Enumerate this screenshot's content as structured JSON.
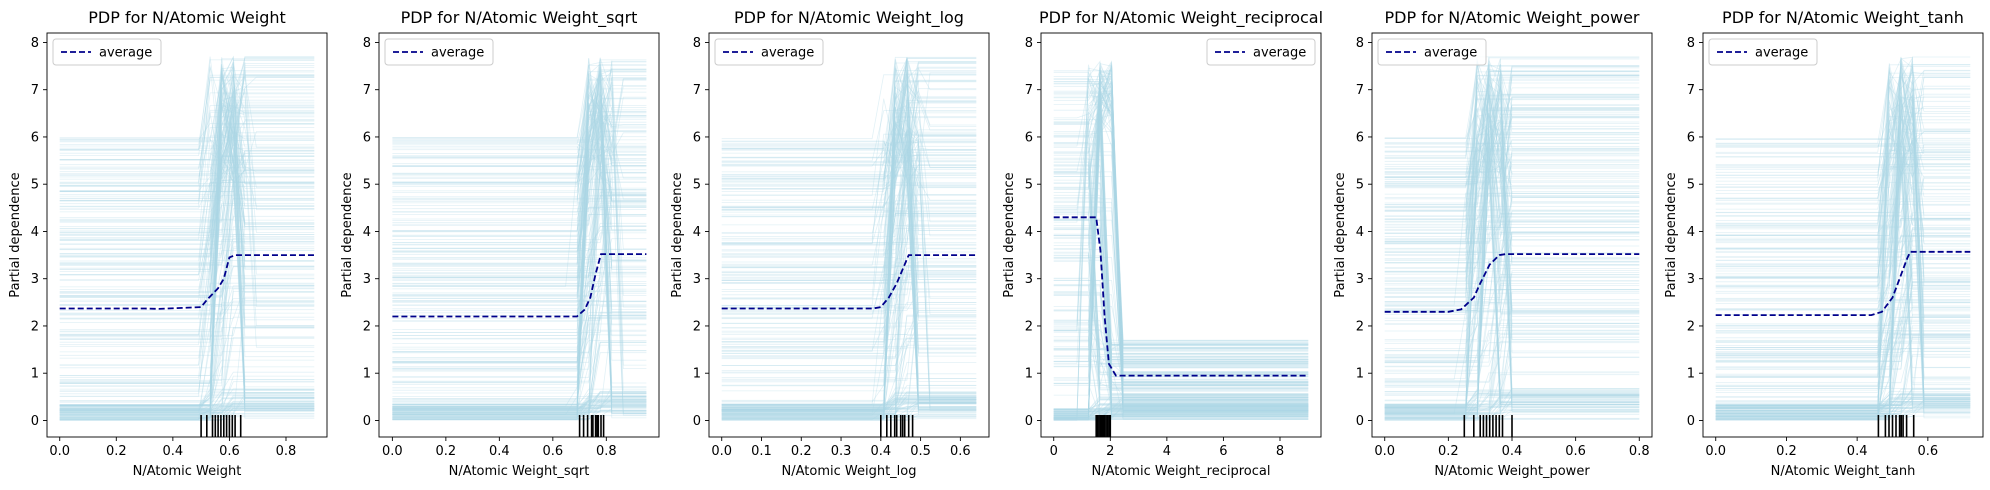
{
  "chart_data": [
    {
      "type": "line",
      "title": "PDP for N/Atomic Weight",
      "xlabel": "N/Atomic Weight",
      "ylabel": "Partial dependence",
      "xlim": [
        -0.045,
        0.945
      ],
      "ylim": [
        -0.35,
        8.2
      ],
      "xticks": [
        0.0,
        0.2,
        0.4,
        0.6,
        0.8
      ],
      "xtick_labels": [
        "0.0",
        "0.2",
        "0.4",
        "0.6",
        "0.8"
      ],
      "yticks": [
        0,
        1,
        2,
        3,
        4,
        5,
        6,
        7,
        8
      ],
      "ytick_labels": [
        "0",
        "1",
        "2",
        "3",
        "4",
        "5",
        "6",
        "7",
        "8"
      ],
      "legend": {
        "label": "average",
        "position": "upper left"
      },
      "series": [
        {
          "name": "average",
          "color": "#00008b",
          "style": "dashed",
          "x": [
            0.0,
            0.3,
            0.35,
            0.5,
            0.52,
            0.56,
            0.58,
            0.6,
            0.62,
            0.9
          ],
          "y": [
            2.37,
            2.37,
            2.36,
            2.4,
            2.55,
            2.8,
            3.0,
            3.45,
            3.5,
            3.5
          ]
        }
      ],
      "rug": [
        0.5,
        0.52,
        0.54,
        0.55,
        0.56,
        0.57,
        0.58,
        0.59,
        0.6,
        0.61,
        0.62,
        0.64
      ],
      "ice": {
        "color": "#add8e6",
        "transition": [
          0.5,
          0.62
        ],
        "peak_at": 0.6
      }
    },
    {
      "type": "line",
      "title": "PDP for N/Atomic Weight_sqrt",
      "xlabel": "N/Atomic Weight_sqrt",
      "ylabel": "Partial dependence",
      "xlim": [
        -0.05,
        0.997
      ],
      "ylim": [
        -0.35,
        8.2
      ],
      "xticks": [
        0.0,
        0.2,
        0.4,
        0.6,
        0.8
      ],
      "xtick_labels": [
        "0.0",
        "0.2",
        "0.4",
        "0.6",
        "0.8"
      ],
      "yticks": [
        0,
        1,
        2,
        3,
        4,
        5,
        6,
        7,
        8
      ],
      "ytick_labels": [
        "0",
        "1",
        "2",
        "3",
        "4",
        "5",
        "6",
        "7",
        "8"
      ],
      "legend": {
        "label": "average",
        "position": "upper left"
      },
      "series": [
        {
          "name": "average",
          "color": "#00008b",
          "style": "dashed",
          "x": [
            0.0,
            0.6,
            0.69,
            0.72,
            0.74,
            0.76,
            0.78,
            0.95
          ],
          "y": [
            2.2,
            2.2,
            2.2,
            2.35,
            2.6,
            3.1,
            3.52,
            3.52
          ]
        }
      ],
      "rug": [
        0.7,
        0.715,
        0.73,
        0.745,
        0.75,
        0.76,
        0.765,
        0.77,
        0.78,
        0.79
      ],
      "ice": {
        "color": "#add8e6",
        "transition": [
          0.69,
          0.79
        ],
        "peak_at": 0.77
      }
    },
    {
      "type": "line",
      "title": "PDP for N/Atomic Weight_log",
      "xlabel": "N/Atomic Weight_log",
      "ylabel": "Partial dependence",
      "xlim": [
        -0.032,
        0.672
      ],
      "ylim": [
        -0.35,
        8.2
      ],
      "xticks": [
        0.0,
        0.1,
        0.2,
        0.3,
        0.4,
        0.5,
        0.6
      ],
      "xtick_labels": [
        "0.0",
        "0.1",
        "0.2",
        "0.3",
        "0.4",
        "0.5",
        "0.6"
      ],
      "yticks": [
        0,
        1,
        2,
        3,
        4,
        5,
        6,
        7,
        8
      ],
      "ytick_labels": [
        "0",
        "1",
        "2",
        "3",
        "4",
        "5",
        "6",
        "7",
        "8"
      ],
      "legend": {
        "label": "average",
        "position": "upper left"
      },
      "series": [
        {
          "name": "average",
          "color": "#00008b",
          "style": "dashed",
          "x": [
            0.0,
            0.38,
            0.4,
            0.42,
            0.44,
            0.46,
            0.47,
            0.64
          ],
          "y": [
            2.37,
            2.37,
            2.4,
            2.6,
            2.9,
            3.3,
            3.5,
            3.5
          ]
        }
      ],
      "rug": [
        0.4,
        0.415,
        0.425,
        0.435,
        0.44,
        0.45,
        0.455,
        0.46,
        0.47,
        0.48
      ],
      "ice": {
        "color": "#add8e6",
        "transition": [
          0.4,
          0.48
        ],
        "peak_at": 0.46
      }
    },
    {
      "type": "line",
      "title": "PDP for N/Atomic Weight_reciprocal",
      "xlabel": "N/Atomic Weight_reciprocal",
      "ylabel": "Partial dependence",
      "xlim": [
        -0.45,
        9.45
      ],
      "ylim": [
        -0.35,
        8.2
      ],
      "xticks": [
        0,
        2,
        4,
        6,
        8
      ],
      "xtick_labels": [
        "0",
        "2",
        "4",
        "6",
        "8"
      ],
      "yticks": [
        0,
        1,
        2,
        3,
        4,
        5,
        6,
        7,
        8
      ],
      "ytick_labels": [
        "0",
        "1",
        "2",
        "3",
        "4",
        "5",
        "6",
        "7",
        "8"
      ],
      "legend": {
        "label": "average",
        "position": "upper right"
      },
      "series": [
        {
          "name": "average",
          "color": "#00008b",
          "style": "dashed",
          "x": [
            0.0,
            1.5,
            1.65,
            1.8,
            1.95,
            2.2,
            9.0
          ],
          "y": [
            4.3,
            4.3,
            3.6,
            2.2,
            1.2,
            0.95,
            0.95
          ]
        }
      ],
      "rug": [
        1.5,
        1.55,
        1.6,
        1.65,
        1.7,
        1.75,
        1.8,
        1.85,
        1.9,
        1.95,
        2.0
      ],
      "ice": {
        "color": "#add8e6",
        "transition": [
          1.5,
          2.2
        ],
        "peak_at": 1.7
      }
    },
    {
      "type": "line",
      "title": "PDP for N/Atomic Weight_power",
      "xlabel": "N/Atomic Weight_power",
      "ylabel": "Partial dependence",
      "xlim": [
        -0.04,
        0.84
      ],
      "ylim": [
        -0.35,
        8.2
      ],
      "xticks": [
        0.0,
        0.2,
        0.4,
        0.6,
        0.8
      ],
      "xtick_labels": [
        "0.0",
        "0.2",
        "0.4",
        "0.6",
        "0.8"
      ],
      "yticks": [
        0,
        1,
        2,
        3,
        4,
        5,
        6,
        7,
        8
      ],
      "ytick_labels": [
        "0",
        "1",
        "2",
        "3",
        "4",
        "5",
        "6",
        "7",
        "8"
      ],
      "legend": {
        "label": "average",
        "position": "upper left"
      },
      "series": [
        {
          "name": "average",
          "color": "#00008b",
          "style": "dashed",
          "x": [
            0.0,
            0.2,
            0.24,
            0.28,
            0.3,
            0.33,
            0.36,
            0.38,
            0.8
          ],
          "y": [
            2.3,
            2.3,
            2.35,
            2.6,
            2.9,
            3.3,
            3.5,
            3.52,
            3.52
          ]
        }
      ],
      "rug": [
        0.25,
        0.28,
        0.3,
        0.31,
        0.32,
        0.33,
        0.34,
        0.35,
        0.36,
        0.37,
        0.4
      ],
      "ice": {
        "color": "#add8e6",
        "transition": [
          0.25,
          0.4
        ],
        "peak_at": 0.33
      }
    },
    {
      "type": "line",
      "title": "PDP for N/Atomic Weight_tanh",
      "xlabel": "N/Atomic Weight_tanh",
      "ylabel": "Partial dependence",
      "xlim": [
        -0.036,
        0.756
      ],
      "ylim": [
        -0.35,
        8.2
      ],
      "xticks": [
        0.0,
        0.2,
        0.4,
        0.6
      ],
      "xtick_labels": [
        "0.0",
        "0.2",
        "0.4",
        "0.6"
      ],
      "yticks": [
        0,
        1,
        2,
        3,
        4,
        5,
        6,
        7,
        8
      ],
      "ytick_labels": [
        "0",
        "1",
        "2",
        "3",
        "4",
        "5",
        "6",
        "7",
        "8"
      ],
      "legend": {
        "label": "average",
        "position": "upper left"
      },
      "series": [
        {
          "name": "average",
          "color": "#00008b",
          "style": "dashed",
          "x": [
            0.0,
            0.44,
            0.47,
            0.5,
            0.52,
            0.54,
            0.55,
            0.72
          ],
          "y": [
            2.23,
            2.23,
            2.3,
            2.6,
            3.0,
            3.4,
            3.57,
            3.57
          ]
        }
      ],
      "rug": [
        0.46,
        0.48,
        0.49,
        0.5,
        0.51,
        0.52,
        0.525,
        0.53,
        0.54,
        0.56
      ],
      "ice": {
        "color": "#add8e6",
        "transition": [
          0.46,
          0.56
        ],
        "peak_at": 0.53
      }
    }
  ]
}
